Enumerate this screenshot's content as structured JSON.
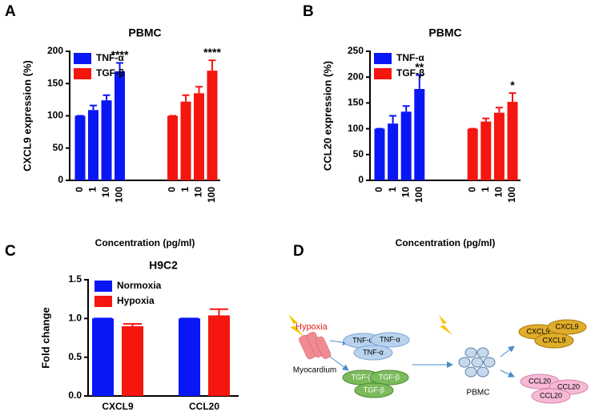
{
  "chart_data": [
    {
      "type": "bar",
      "label": "A",
      "title": "PBMC",
      "xlabel": "Concentration (pg/ml)",
      "ylabel": "CXCL9 expression (%)",
      "categories": [
        "0",
        "1",
        "10",
        "100",
        "0",
        "1",
        "10",
        "100"
      ],
      "series": [
        {
          "name": "TNF-α",
          "color": "#0a17f5",
          "values": [
            100,
            109,
            124,
            169,
            null,
            null,
            null,
            null
          ],
          "errors": [
            0,
            7,
            8,
            13,
            null,
            null,
            null,
            null
          ],
          "annotations": [
            null,
            null,
            null,
            "****",
            null,
            null,
            null,
            null
          ]
        },
        {
          "name": "TGF-β",
          "color": "#f5160f",
          "values": [
            null,
            null,
            null,
            null,
            100,
            122,
            135,
            170
          ],
          "errors": [
            null,
            null,
            null,
            null,
            0,
            10,
            10,
            16
          ],
          "annotations": [
            null,
            null,
            null,
            null,
            null,
            null,
            null,
            "****"
          ]
        }
      ],
      "ylim": [
        0,
        200
      ],
      "yticks": [
        0,
        50,
        100,
        150,
        200
      ],
      "legend": "upper left"
    },
    {
      "type": "bar",
      "label": "B",
      "title": "PBMC",
      "xlabel": "Concentration (pg/ml)",
      "ylabel": "CCL20 expression (%)",
      "categories": [
        "0",
        "1",
        "10",
        "100",
        "0",
        "1",
        "10",
        "100"
      ],
      "series": [
        {
          "name": "TNF-α",
          "color": "#0a17f5",
          "values": [
            100,
            110,
            133,
            177,
            null,
            null,
            null,
            null
          ],
          "errors": [
            0,
            15,
            11,
            27,
            null,
            null,
            null,
            null
          ],
          "annotations": [
            null,
            null,
            null,
            "**",
            null,
            null,
            null,
            null
          ]
        },
        {
          "name": "TGF-β",
          "color": "#f5160f",
          "values": [
            null,
            null,
            null,
            null,
            100,
            114,
            131,
            152
          ],
          "errors": [
            null,
            null,
            null,
            null,
            0,
            6,
            10,
            17
          ],
          "annotations": [
            null,
            null,
            null,
            null,
            null,
            null,
            null,
            "*"
          ]
        }
      ],
      "ylim": [
        0,
        250
      ],
      "yticks": [
        0,
        50,
        100,
        150,
        200,
        250
      ],
      "legend": "upper left"
    },
    {
      "type": "bar",
      "label": "C",
      "title": "H9C2",
      "ylabel": "Fold change",
      "categories": [
        "CXCL9",
        "CCL20"
      ],
      "series": [
        {
          "name": "Normoxia",
          "color": "#0a17f5",
          "values": [
            1.0,
            1.0
          ],
          "errors": [
            0,
            0
          ]
        },
        {
          "name": "Hypoxia",
          "color": "#f5160f",
          "values": [
            0.9,
            1.04
          ],
          "errors": [
            0.03,
            0.08
          ]
        }
      ],
      "ylim": [
        0,
        1.5
      ],
      "yticks": [
        {
          "value": 0,
          "label": "0.0"
        },
        0.5,
        {
          "value": 1,
          "label": "1.0"
        },
        1.5
      ],
      "legend": "upper left"
    }
  ],
  "diagram": {
    "label": "D",
    "hypoxia": "Hypoxia",
    "myocardium": "Myocardium",
    "tnf": [
      "TNF-α",
      "TNF-α",
      "TNF-α"
    ],
    "tgf": [
      "TGF-β",
      "TGF-β",
      "TGF-β"
    ],
    "pbmc": "PBMC",
    "cxcl9": [
      "CXCL9",
      "CXCL9",
      "CXCL9"
    ],
    "ccl20": [
      "CCL20",
      "CCL20",
      "CCL20"
    ]
  }
}
